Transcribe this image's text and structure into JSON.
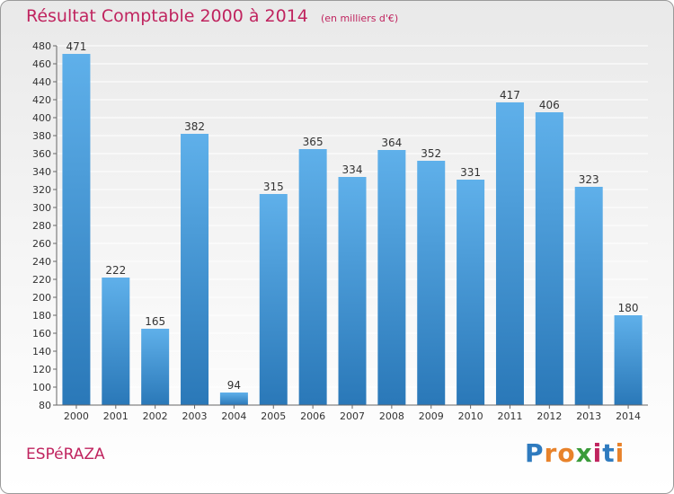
{
  "title": "Résultat Comptable 2000 à 2014",
  "subtitle": "(en milliers d'€)",
  "commune": "ESPéRAZA",
  "logo": {
    "letters": [
      "P",
      "r",
      "o",
      "x",
      "i",
      "t",
      "i"
    ],
    "colors": [
      "#2f7bbf",
      "#e8822a",
      "#e8822a",
      "#3a9b3a",
      "#c0245f",
      "#2f7bbf",
      "#e8822a"
    ]
  },
  "colors": {
    "title": "#c0245f",
    "bar_top": "#5fb0ea",
    "bar_bottom": "#2a78b8",
    "grid": "#ffffff",
    "tick": "#333333"
  },
  "chart_data": {
    "type": "bar",
    "title": "Résultat Comptable 2000 à 2014",
    "subtitle": "(en milliers d'€)",
    "categories": [
      "2000",
      "2001",
      "2002",
      "2003",
      "2004",
      "2005",
      "2006",
      "2007",
      "2008",
      "2009",
      "2010",
      "2011",
      "2012",
      "2013",
      "2014"
    ],
    "values": [
      471,
      222,
      165,
      382,
      94,
      315,
      365,
      334,
      364,
      352,
      331,
      417,
      406,
      323,
      180
    ],
    "ylim": [
      80,
      480
    ],
    "yticks": [
      80,
      100,
      120,
      140,
      160,
      180,
      200,
      220,
      240,
      260,
      280,
      300,
      320,
      340,
      360,
      380,
      400,
      420,
      440,
      460,
      480
    ],
    "grid": true,
    "xlabel": "",
    "ylabel": ""
  }
}
